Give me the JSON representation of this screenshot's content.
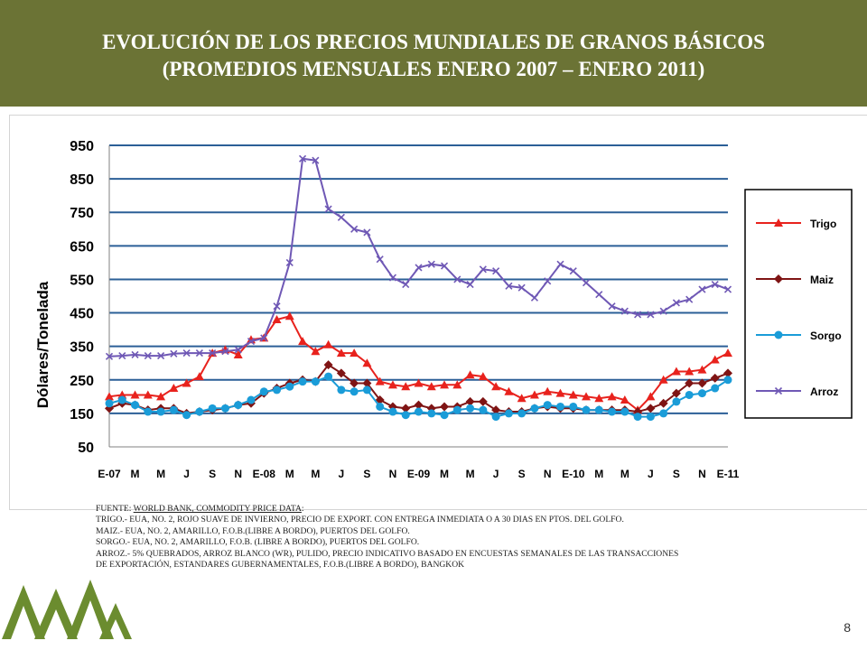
{
  "header": {
    "title_line1": "EVOLUCIÓN DE LOS PRECIOS MUNDIALES DE GRANOS BÁSICOS",
    "title_line2": "(PROMEDIOS MENSUALES ENERO 2007 – ENERO 2011)",
    "background": "#6b7335"
  },
  "chart_data": {
    "type": "line",
    "ylabel": "Dólares/Tonelada",
    "ylim": [
      50,
      950
    ],
    "yticks": [
      50,
      150,
      250,
      350,
      450,
      550,
      650,
      750,
      850,
      950
    ],
    "x_tick_labels": [
      "E-07",
      "M",
      "M",
      "J",
      "S",
      "N",
      "E-08",
      "M",
      "M",
      "J",
      "S",
      "N",
      "E-09",
      "M",
      "M",
      "J",
      "S",
      "N",
      "E-10",
      "M",
      "M",
      "J",
      "S",
      "N",
      "E-11"
    ],
    "grid": true,
    "legend_position": "right",
    "series": [
      {
        "name": "Trigo",
        "color": "#e8221d",
        "marker": "triangle",
        "values": [
          200,
          205,
          205,
          205,
          200,
          225,
          240,
          260,
          330,
          340,
          325,
          370,
          375,
          430,
          440,
          365,
          335,
          355,
          330,
          330,
          300,
          245,
          235,
          230,
          240,
          230,
          235,
          235,
          265,
          260,
          230,
          215,
          195,
          205,
          215,
          210,
          205,
          200,
          195,
          200,
          190,
          160,
          200,
          250,
          275,
          275,
          280,
          310,
          330
        ]
      },
      {
        "name": "Maiz",
        "color": "#7f1414",
        "marker": "diamond",
        "values": [
          165,
          180,
          175,
          160,
          165,
          165,
          150,
          155,
          160,
          165,
          175,
          180,
          210,
          225,
          240,
          250,
          245,
          295,
          270,
          240,
          240,
          190,
          170,
          165,
          175,
          165,
          170,
          170,
          185,
          185,
          160,
          155,
          155,
          165,
          170,
          165,
          165,
          160,
          160,
          160,
          160,
          155,
          165,
          180,
          210,
          240,
          240,
          255,
          270
        ]
      },
      {
        "name": "Sorgo",
        "color": "#1a9cd8",
        "marker": "circle",
        "values": [
          180,
          190,
          175,
          155,
          155,
          160,
          145,
          155,
          165,
          165,
          175,
          190,
          215,
          220,
          230,
          245,
          245,
          260,
          220,
          215,
          220,
          170,
          155,
          145,
          155,
          150,
          145,
          160,
          165,
          160,
          140,
          150,
          150,
          165,
          175,
          170,
          170,
          160,
          160,
          155,
          155,
          140,
          140,
          150,
          185,
          205,
          210,
          225,
          250
        ]
      },
      {
        "name": "Arroz",
        "color": "#6f58b5",
        "marker": "x",
        "values": [
          320,
          322,
          325,
          322,
          322,
          328,
          330,
          330,
          330,
          335,
          340,
          365,
          375,
          470,
          600,
          910,
          905,
          760,
          735,
          700,
          690,
          610,
          555,
          535,
          585,
          595,
          590,
          550,
          535,
          580,
          575,
          530,
          525,
          495,
          545,
          595,
          575,
          540,
          505,
          470,
          455,
          445,
          445,
          455,
          480,
          490,
          520,
          535,
          520
        ]
      }
    ]
  },
  "notes": {
    "line1_prefix": "FUENTE: ",
    "line1_link": "WORLD BANK, COMMODITY PRICE DATA",
    "line1_suffix": ":",
    "line2": "TRIGO.-  EUA, NO. 2, ROJO SUAVE DE INVIERNO,  PRECIO DE EXPORT. CON ENTREGA INMEDIATA  O A 30 DIAS EN PTOS. DEL GOLFO.",
    "line3": "MAIZ.-    EUA, NO. 2, AMARILLO, F.O.B.(LIBRE A BORDO), PUERTOS DEL GOLFO.",
    "line4": "SORGO.- EUA, NO. 2, AMARILLO, F.O.B. (LIBRE A BORDO), PUERTOS DEL GOLFO.",
    "line5": "ARROZ.- 5% QUEBRADOS, ARROZ BLANCO (WR),   PULIDO, PRECIO INDICATIVO BASADO  EN  ENCUESTAS SEMANALES DE LAS TRANSACCIONES",
    "line6": "DE EXPORTACIÓN, ESTANDARES GUBERNAMENTALES, F.O.B.(LIBRE A BORDO),  BANGKOK"
  },
  "page_number": "8",
  "logo": {
    "color": "#6b8c2f"
  }
}
